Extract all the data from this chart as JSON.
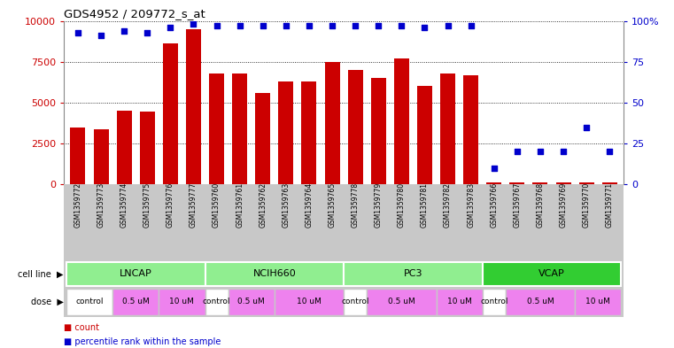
{
  "title": "GDS4952 / 209772_s_at",
  "samples": [
    "GSM1359772",
    "GSM1359773",
    "GSM1359774",
    "GSM1359775",
    "GSM1359776",
    "GSM1359777",
    "GSM1359760",
    "GSM1359761",
    "GSM1359762",
    "GSM1359763",
    "GSM1359764",
    "GSM1359765",
    "GSM1359778",
    "GSM1359779",
    "GSM1359780",
    "GSM1359781",
    "GSM1359782",
    "GSM1359783",
    "GSM1359766",
    "GSM1359767",
    "GSM1359768",
    "GSM1359769",
    "GSM1359770",
    "GSM1359771"
  ],
  "counts": [
    3500,
    3350,
    4500,
    4450,
    8600,
    9500,
    6800,
    6800,
    5600,
    6300,
    6300,
    7500,
    7000,
    6500,
    7700,
    6000,
    6800,
    6700,
    100,
    100,
    100,
    100,
    100,
    100
  ],
  "percentiles": [
    93,
    91,
    94,
    93,
    96,
    98,
    97,
    97,
    97,
    97,
    97,
    97,
    97,
    97,
    97,
    96,
    97,
    97,
    10,
    20,
    20,
    20,
    35,
    20
  ],
  "cell_lines": [
    {
      "name": "LNCAP",
      "start": 0,
      "end": 6,
      "color": "#90EE90"
    },
    {
      "name": "NCIH660",
      "start": 6,
      "end": 12,
      "color": "#90EE90"
    },
    {
      "name": "PC3",
      "start": 12,
      "end": 18,
      "color": "#90EE90"
    },
    {
      "name": "VCAP",
      "start": 18,
      "end": 24,
      "color": "#32CD32"
    }
  ],
  "dose_groups": [
    {
      "label": "control",
      "start": 0,
      "end": 2,
      "color": "#FFFFFF"
    },
    {
      "label": "0.5 uM",
      "start": 2,
      "end": 4,
      "color": "#EE82EE"
    },
    {
      "label": "10 uM",
      "start": 4,
      "end": 6,
      "color": "#EE82EE"
    },
    {
      "label": "control",
      "start": 6,
      "end": 7,
      "color": "#FFFFFF"
    },
    {
      "label": "0.5 uM",
      "start": 7,
      "end": 9,
      "color": "#EE82EE"
    },
    {
      "label": "10 uM",
      "start": 9,
      "end": 12,
      "color": "#EE82EE"
    },
    {
      "label": "control",
      "start": 12,
      "end": 13,
      "color": "#FFFFFF"
    },
    {
      "label": "0.5 uM",
      "start": 13,
      "end": 16,
      "color": "#EE82EE"
    },
    {
      "label": "10 uM",
      "start": 16,
      "end": 18,
      "color": "#EE82EE"
    },
    {
      "label": "control",
      "start": 18,
      "end": 19,
      "color": "#FFFFFF"
    },
    {
      "label": "0.5 uM",
      "start": 19,
      "end": 22,
      "color": "#EE82EE"
    },
    {
      "label": "10 uM",
      "start": 22,
      "end": 24,
      "color": "#EE82EE"
    }
  ],
  "bar_color": "#CC0000",
  "dot_color": "#0000CC",
  "tick_bg_color": "#C8C8C8",
  "ylim_left": [
    0,
    10000
  ],
  "ylim_right": [
    0,
    100
  ],
  "yticks_left": [
    0,
    2500,
    5000,
    7500,
    10000
  ],
  "yticks_right": [
    0,
    25,
    50,
    75,
    100
  ],
  "background_color": "#FFFFFF",
  "cell_line_label": "cell line",
  "dose_label": "dose",
  "legend_count": "count",
  "legend_percentile": "percentile rank within the sample"
}
